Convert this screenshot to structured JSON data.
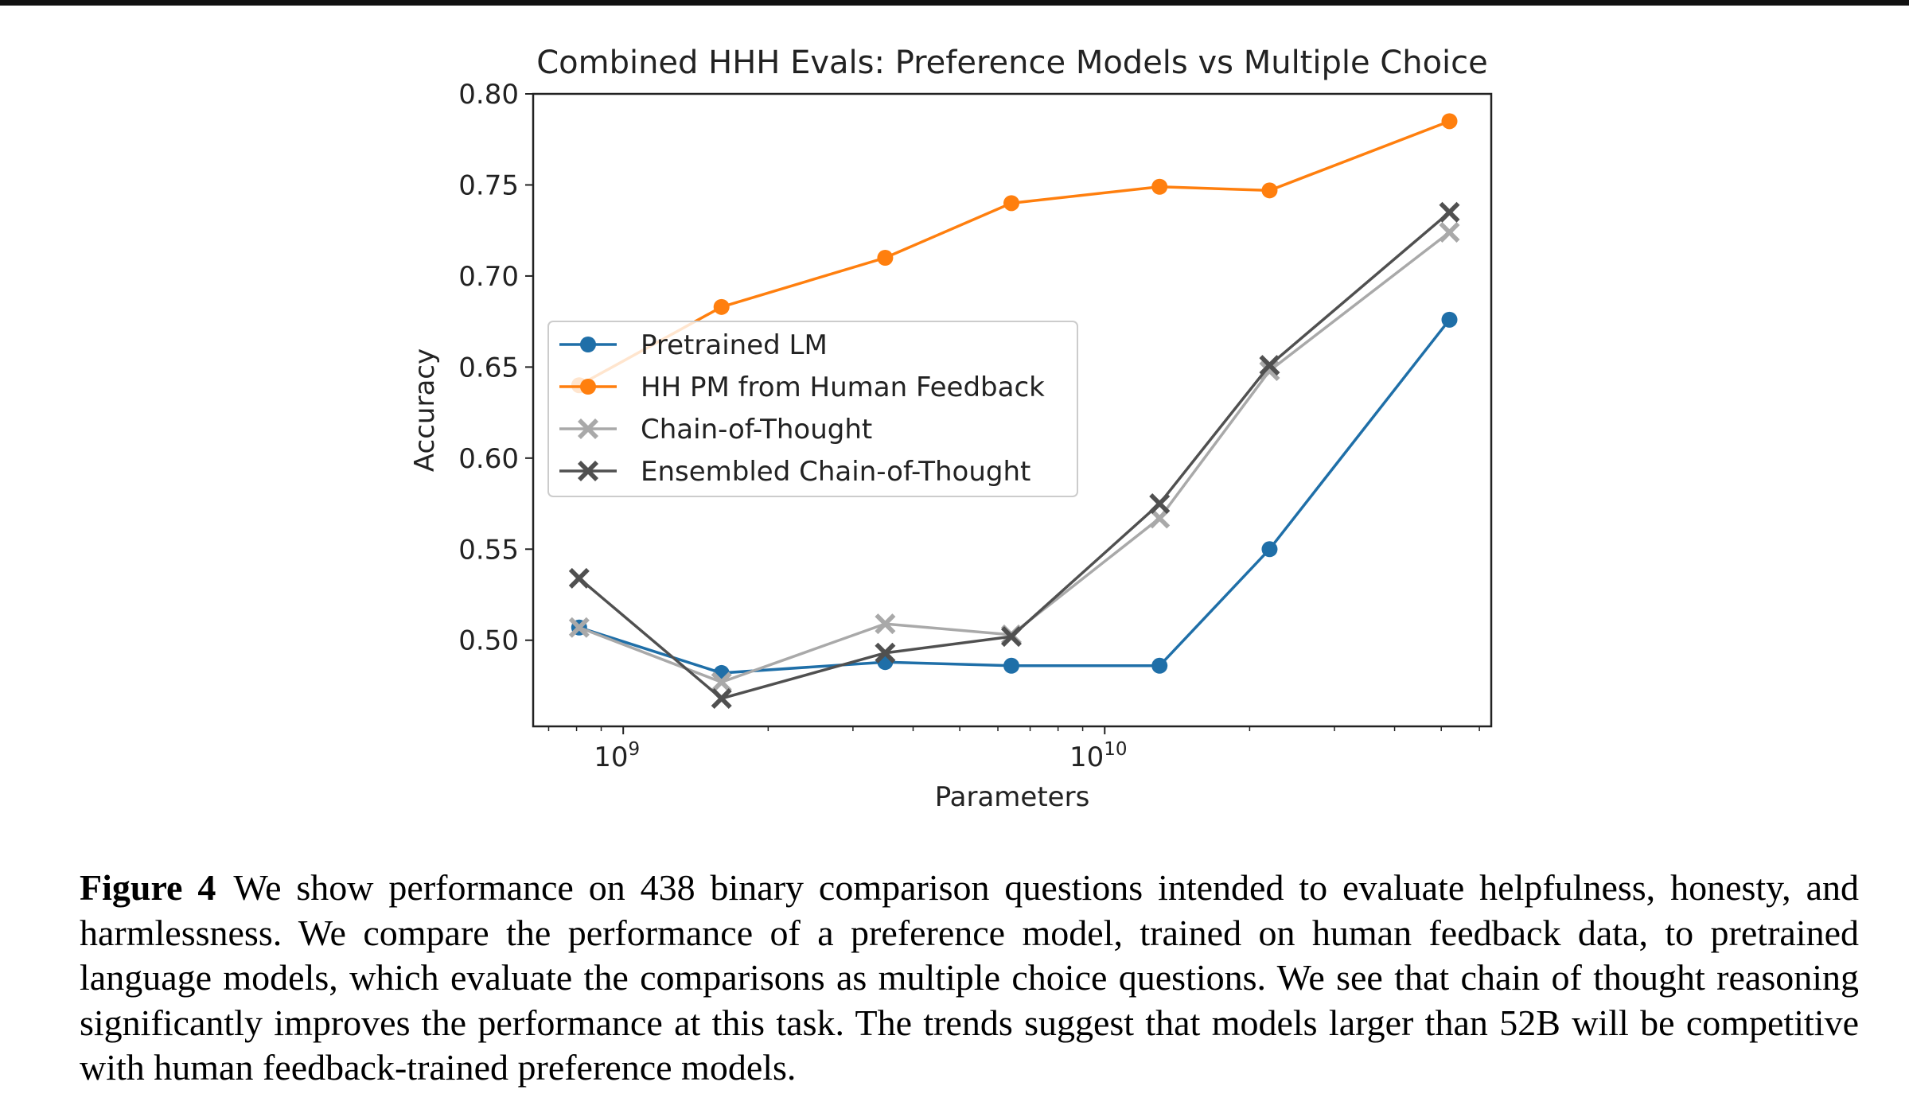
{
  "chart_data": {
    "type": "line",
    "title": "Combined HHH Evals: Preference Models vs Multiple Choice",
    "xlabel": "Parameters",
    "ylabel": "Accuracy",
    "xscale": "log",
    "xlim": [
      650000000.0,
      63500000000.0
    ],
    "ylim": [
      0.4527,
      0.8
    ],
    "yticks": [
      0.5,
      0.55,
      0.6,
      0.65,
      0.7,
      0.75,
      0.8
    ],
    "ytick_labels": [
      "0.50",
      "0.55",
      "0.60",
      "0.65",
      "0.70",
      "0.75",
      "0.80"
    ],
    "xticks": [
      {
        "value": 1000000000.0,
        "base": "10",
        "exp": "9"
      },
      {
        "value": 10000000000.0,
        "base": "10",
        "exp": "10"
      }
    ],
    "x": [
      810000000.0,
      1600000000.0,
      3500000000.0,
      6400000000.0,
      13000000000.0,
      22000000000.0,
      52000000000.0
    ],
    "legend_position": "center-left",
    "series": [
      {
        "name": "Pretrained LM",
        "color": "#1f6fa8",
        "marker": "circle",
        "values": [
          0.507,
          0.482,
          0.488,
          0.486,
          0.486,
          0.55,
          0.676
        ]
      },
      {
        "name": "HH PM from Human Feedback",
        "color": "#ff7f0e",
        "marker": "circle",
        "values": [
          0.64,
          0.683,
          0.71,
          0.74,
          0.749,
          0.747,
          0.785
        ]
      },
      {
        "name": "Chain-of-Thought",
        "color": "#a9a9a9",
        "marker": "x",
        "values": [
          0.507,
          0.477,
          0.509,
          0.503,
          0.567,
          0.648,
          0.724
        ]
      },
      {
        "name": "Ensembled Chain-of-Thought",
        "color": "#505050",
        "marker": "x",
        "values": [
          0.534,
          0.468,
          0.493,
          0.502,
          0.575,
          0.651,
          0.735
        ]
      }
    ]
  },
  "caption": {
    "label": "Figure 4",
    "text": "We show performance on 438 binary comparison questions intended to evaluate helpfulness, honesty, and harmlessness. We compare the performance of a preference model, trained on human feedback data, to pretrained language models, which evaluate the comparisons as multiple choice questions. We see that chain of thought reasoning significantly improves the performance at this task. The trends suggest that models larger than 52B will be competitive with human feedback-trained preference models."
  }
}
